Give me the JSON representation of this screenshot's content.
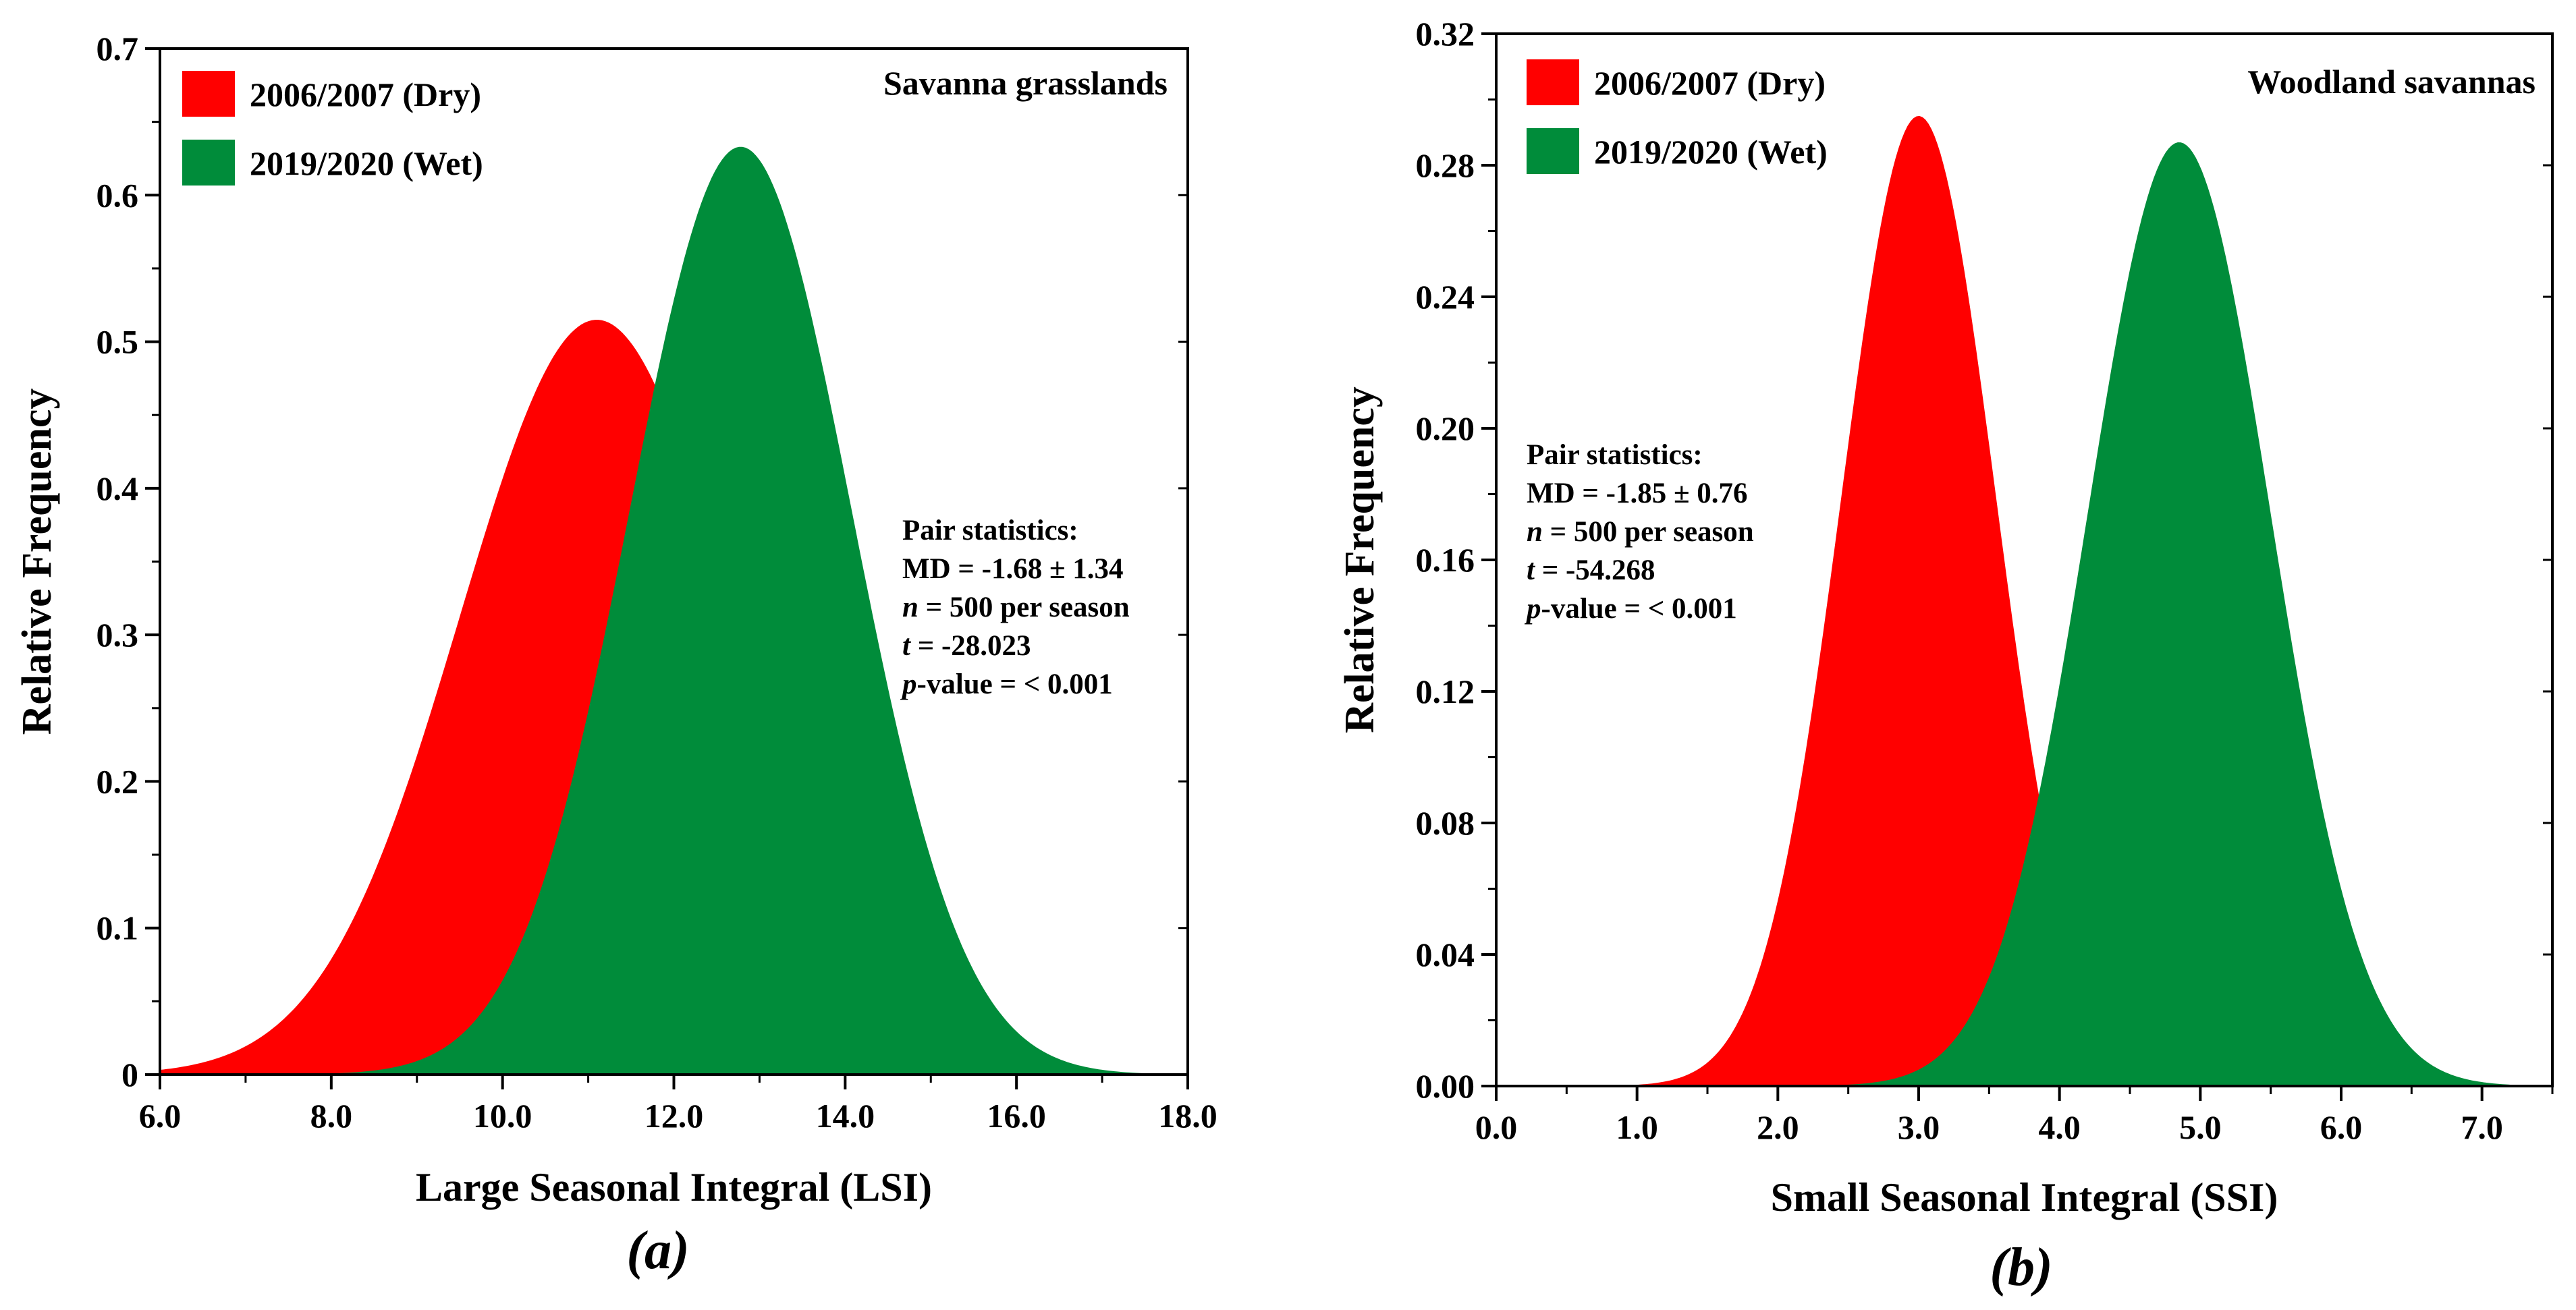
{
  "colors": {
    "dry": "#ff0000",
    "wet": "#008c3a"
  },
  "chart_data": [
    {
      "type": "area",
      "caption": "(a)",
      "panel_label": "Savanna grasslands",
      "xlabel": "Large Seasonal Integral (LSI)",
      "ylabel": "Relative Frequency",
      "xlim": [
        6.0,
        18.0
      ],
      "ylim": [
        0,
        0.7
      ],
      "xticks": [
        6,
        8,
        10,
        12,
        14,
        16,
        18
      ],
      "xtick_labels": [
        "6.0",
        "8.0",
        "10.0",
        "12.0",
        "14.0",
        "16.0",
        "18.0"
      ],
      "yticks": [
        0,
        0.1,
        0.2,
        0.3,
        0.4,
        0.5,
        0.6,
        0.7
      ],
      "ytick_labels": [
        "0",
        "0.1",
        "0.2",
        "0.3",
        "0.4",
        "0.5",
        "0.6",
        "0.7"
      ],
      "series": [
        {
          "name": "2006/2007 (Dry)",
          "color": "#ff0000",
          "mean": 11.1,
          "peak": 0.515,
          "sd": 1.6,
          "xmin": 6.0,
          "xmax": 18.0
        },
        {
          "name": "2019/2020 (Wet)",
          "color": "#008c3a",
          "mean": 12.78,
          "peak": 0.633,
          "sd": 1.3,
          "xmin": 6.0,
          "xmax": 18.0
        }
      ],
      "stats": [
        "Pair statistics:",
        "MD = -1.68 ± 1.34",
        {
          "italic": "n",
          "rest": " = 500 per season"
        },
        {
          "italic": "t",
          "rest": " = -28.023"
        },
        {
          "italic": "p",
          "rest": "-value = < 0.001"
        }
      ]
    },
    {
      "type": "area",
      "caption": "(b)",
      "panel_label": "Woodland savannas",
      "xlabel": "Small Seasonal Integral (SSI)",
      "ylabel": "Relative Frequency",
      "xlim": [
        0.0,
        7.5
      ],
      "ylim": [
        0,
        0.32
      ],
      "xticks": [
        0,
        1,
        2,
        3,
        4,
        5,
        6,
        7
      ],
      "xtick_labels": [
        "0.0",
        "1.0",
        "2.0",
        "3.0",
        "4.0",
        "5.0",
        "6.0",
        "7.0"
      ],
      "yticks": [
        0,
        0.04,
        0.08,
        0.12,
        0.16,
        0.2,
        0.24,
        0.28,
        0.32
      ],
      "ytick_labels": [
        "0.00",
        "0.04",
        "0.08",
        "0.12",
        "0.16",
        "0.20",
        "0.24",
        "0.28",
        "0.32"
      ],
      "series": [
        {
          "name": "2006/2007 (Dry)",
          "color": "#ff0000",
          "mean": 3.0,
          "peak": 0.295,
          "sd": 0.55,
          "xmin": 1.0,
          "xmax": 7.4
        },
        {
          "name": "2019/2020 (Wet)",
          "color": "#008c3a",
          "mean": 4.85,
          "peak": 0.287,
          "sd": 0.65,
          "xmin": 1.0,
          "xmax": 7.4
        }
      ],
      "stats": [
        "Pair statistics:",
        "MD = -1.85 ± 0.76",
        {
          "italic": "n",
          "rest": " = 500 per season"
        },
        {
          "italic": "t",
          "rest": " = -54.268"
        },
        {
          "italic": "p",
          "rest": "-value = < 0.001"
        }
      ]
    }
  ]
}
